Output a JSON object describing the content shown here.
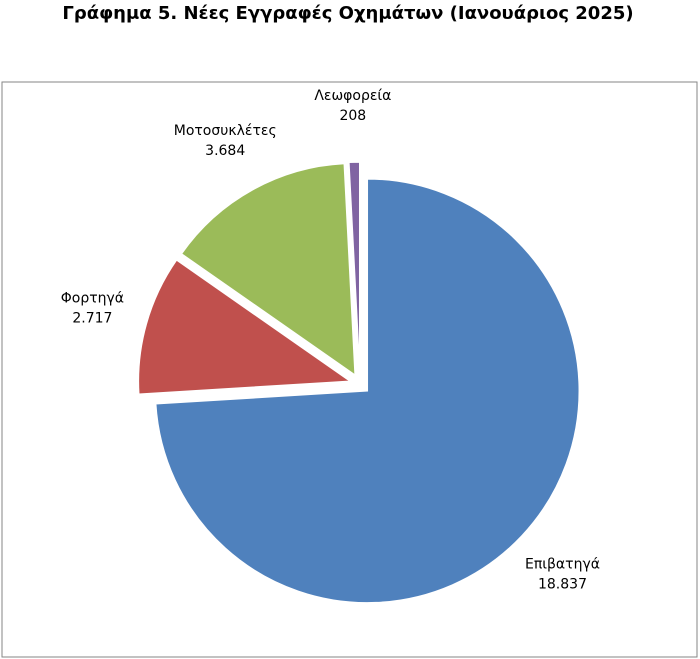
{
  "chart_data": {
    "type": "pie",
    "title": "Γράφημα 5. Νέες Εγγραφές Οχημάτων (Ιανουάριος 2025)",
    "categories": [
      "Επιβατηγά",
      "Φορτηγά",
      "Μοτοσυκλέτες",
      "Λεωφορεία"
    ],
    "values": [
      18837,
      2717,
      3684,
      208
    ],
    "value_labels": [
      "18.837",
      "2.717",
      "3.684",
      "208"
    ],
    "colors": [
      "#4f81bd",
      "#c0504d",
      "#9bbb59",
      "#8064a2"
    ]
  }
}
